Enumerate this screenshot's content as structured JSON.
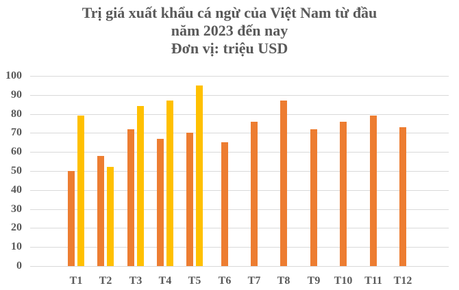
{
  "chart_data": {
    "type": "bar",
    "title": "Trị giá xuất khẩu cá ngừ của Việt Nam từ đầu năm 2023 đến nay",
    "subtitle": "Đơn vị: triệu USD",
    "title_lines": [
      "Trị giá xuất khẩu cá ngừ của Việt Nam từ đầu",
      "năm 2023 đến nay",
      "Đơn vị: triệu USD"
    ],
    "xlabel": "",
    "ylabel": "",
    "categories": [
      "T1",
      "T2",
      "T3",
      "T4",
      "T5",
      "T6",
      "T7",
      "T8",
      "T9",
      "T10",
      "T11",
      "T12"
    ],
    "series": [
      {
        "name": "Series 1",
        "color": "#ED7D31",
        "values": [
          50,
          58,
          72,
          67,
          70,
          65,
          76,
          87,
          72,
          76,
          79,
          73
        ]
      },
      {
        "name": "Series 2",
        "color": "#FFC000",
        "values": [
          79,
          52,
          84,
          87,
          95,
          null,
          null,
          null,
          null,
          null,
          null,
          null
        ]
      }
    ],
    "ylim": [
      0,
      100
    ],
    "yticks": [
      0,
      10,
      20,
      30,
      40,
      50,
      60,
      70,
      80,
      90,
      100
    ],
    "grid": true,
    "legend": "none"
  }
}
